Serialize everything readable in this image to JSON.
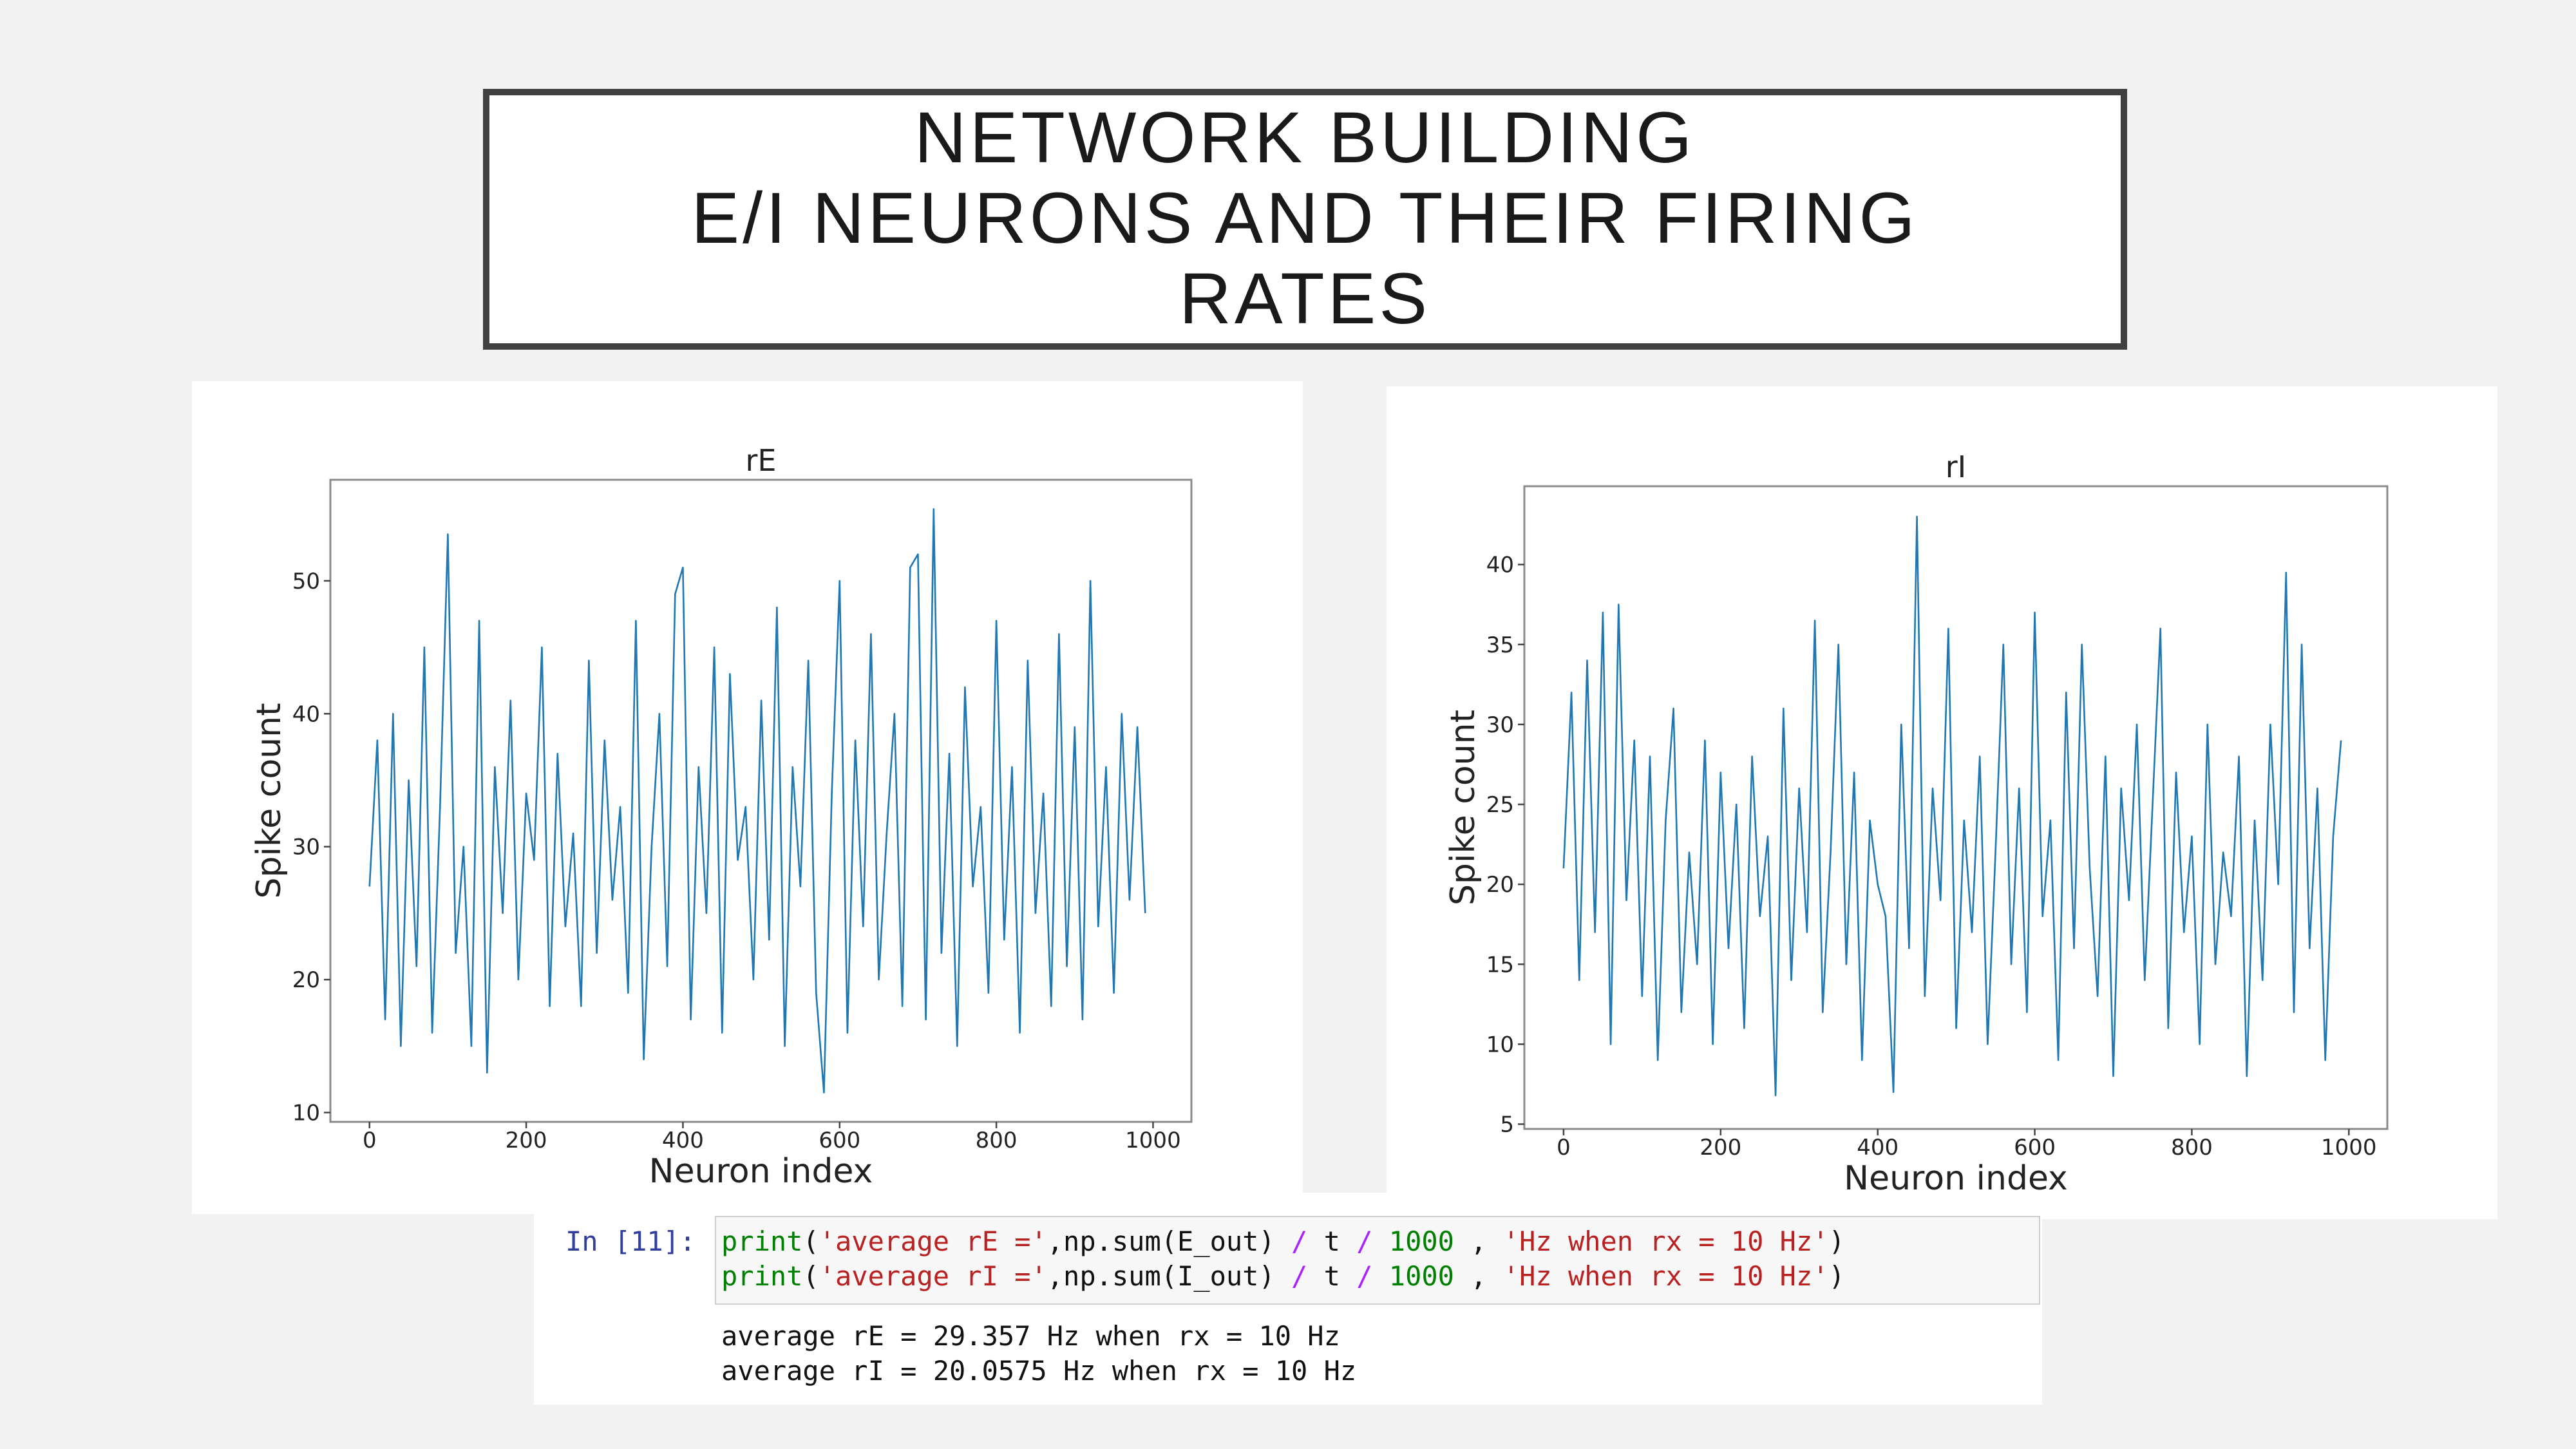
{
  "slide_title": [
    "NETWORK BUILDING",
    "E/I NEURONS AND THEIR FIRING",
    "RATES"
  ],
  "chart_data": [
    {
      "type": "line",
      "title": "rE",
      "x_label": "Neuron index",
      "y_label": "Spike count",
      "color": "#1f77b4",
      "x": [
        0,
        10,
        20,
        30,
        40,
        50,
        60,
        70,
        80,
        90,
        100,
        110,
        120,
        130,
        140,
        150,
        160,
        170,
        180,
        190,
        200,
        210,
        220,
        230,
        240,
        250,
        260,
        270,
        280,
        290,
        300,
        310,
        320,
        330,
        340,
        350,
        360,
        370,
        380,
        390,
        400,
        410,
        420,
        430,
        440,
        450,
        460,
        470,
        480,
        490,
        500,
        510,
        520,
        530,
        540,
        550,
        560,
        570,
        580,
        590,
        600,
        610,
        620,
        630,
        640,
        650,
        660,
        670,
        680,
        690,
        700,
        710,
        720,
        730,
        740,
        750,
        760,
        770,
        780,
        790,
        800,
        810,
        820,
        830,
        840,
        850,
        860,
        870,
        880,
        890,
        900,
        910,
        920,
        930,
        940,
        950,
        960,
        970,
        980,
        990
      ],
      "values": [
        27,
        38,
        17,
        40,
        15,
        35,
        21,
        45,
        16,
        33,
        53.5,
        22,
        30,
        15,
        47,
        13,
        36,
        25,
        41,
        20,
        34,
        29,
        45,
        18,
        37,
        24,
        31,
        18,
        44,
        22,
        38,
        26,
        33,
        19,
        47,
        14,
        30,
        40,
        21,
        49,
        51,
        17,
        36,
        25,
        45,
        16,
        43,
        29,
        33,
        20,
        41,
        23,
        48,
        15,
        36,
        27,
        44,
        19,
        11.5,
        34,
        50,
        16,
        38,
        24,
        46,
        20,
        31,
        40,
        18,
        51,
        52,
        17,
        55.4,
        22,
        37,
        15,
        42,
        27,
        33,
        19,
        47,
        23,
        36,
        16,
        44,
        25,
        34,
        18,
        46,
        21,
        39,
        17,
        50,
        24,
        36,
        19,
        40,
        26,
        39,
        25
      ],
      "xlim": [
        -49.95,
        1048.95
      ],
      "ylim": [
        9.3,
        57.6
      ],
      "xticks": [
        0,
        200,
        400,
        600,
        800,
        1000
      ],
      "yticks": [
        10,
        20,
        30,
        40,
        50
      ]
    },
    {
      "type": "line",
      "title": "rI",
      "x_label": "Neuron index",
      "y_label": "Spike count",
      "color": "#1f77b4",
      "x": [
        0,
        10,
        20,
        30,
        40,
        50,
        60,
        70,
        80,
        90,
        100,
        110,
        120,
        130,
        140,
        150,
        160,
        170,
        180,
        190,
        200,
        210,
        220,
        230,
        240,
        250,
        260,
        270,
        280,
        290,
        300,
        310,
        320,
        330,
        340,
        350,
        360,
        370,
        380,
        390,
        400,
        410,
        420,
        430,
        440,
        450,
        460,
        470,
        480,
        490,
        500,
        510,
        520,
        530,
        540,
        550,
        560,
        570,
        580,
        590,
        600,
        610,
        620,
        630,
        640,
        650,
        660,
        670,
        680,
        690,
        700,
        710,
        720,
        730,
        740,
        750,
        760,
        770,
        780,
        790,
        800,
        810,
        820,
        830,
        840,
        850,
        860,
        870,
        880,
        890,
        900,
        910,
        920,
        930,
        940,
        950,
        960,
        970,
        980,
        990
      ],
      "values": [
        21,
        32,
        14,
        34,
        17,
        37,
        10,
        37.5,
        19,
        29,
        13,
        28,
        9,
        24,
        31,
        12,
        22,
        15,
        29,
        10,
        27,
        16,
        25,
        11,
        28,
        18,
        23,
        6.8,
        31,
        14,
        26,
        17,
        36.5,
        12,
        22,
        35,
        15,
        27,
        9,
        24,
        20,
        18,
        7,
        30,
        16,
        43,
        13,
        26,
        19,
        36,
        11,
        24,
        17,
        28,
        10,
        22,
        35,
        15,
        26,
        12,
        37,
        18,
        24,
        9,
        32,
        16,
        35,
        21,
        13,
        28,
        8,
        26,
        19,
        30,
        14,
        25,
        36,
        11,
        27,
        17,
        23,
        10,
        30,
        15,
        22,
        18,
        28,
        8,
        24,
        14,
        30,
        20,
        39.5,
        12,
        35,
        16,
        26,
        9,
        23,
        29
      ],
      "xlim": [
        -49.95,
        1048.95
      ],
      "ylim": [
        4.7,
        44.9
      ],
      "xticks": [
        0,
        200,
        400,
        600,
        800,
        1000
      ],
      "yticks": [
        5,
        10,
        15,
        20,
        25,
        30,
        35,
        40
      ]
    }
  ],
  "code_cell": {
    "prompt": "In [11]:",
    "input": [
      [
        "print",
        "(",
        "'average rE ='",
        ",np.sum(E_out) ",
        "/",
        " t ",
        "/",
        " 1000",
        " , ",
        "'Hz when rx = 10 Hz'",
        ")"
      ],
      [
        "print",
        "(",
        "'average rI ='",
        ",np.sum(I_out) ",
        "/",
        " t ",
        "/",
        " 1000",
        " , ",
        "'Hz when rx = 10 Hz'",
        ")"
      ]
    ],
    "output": [
      "average rE = 29.357 Hz when rx = 10 Hz",
      "average rI = 20.0575 Hz when rx = 10 Hz"
    ]
  }
}
